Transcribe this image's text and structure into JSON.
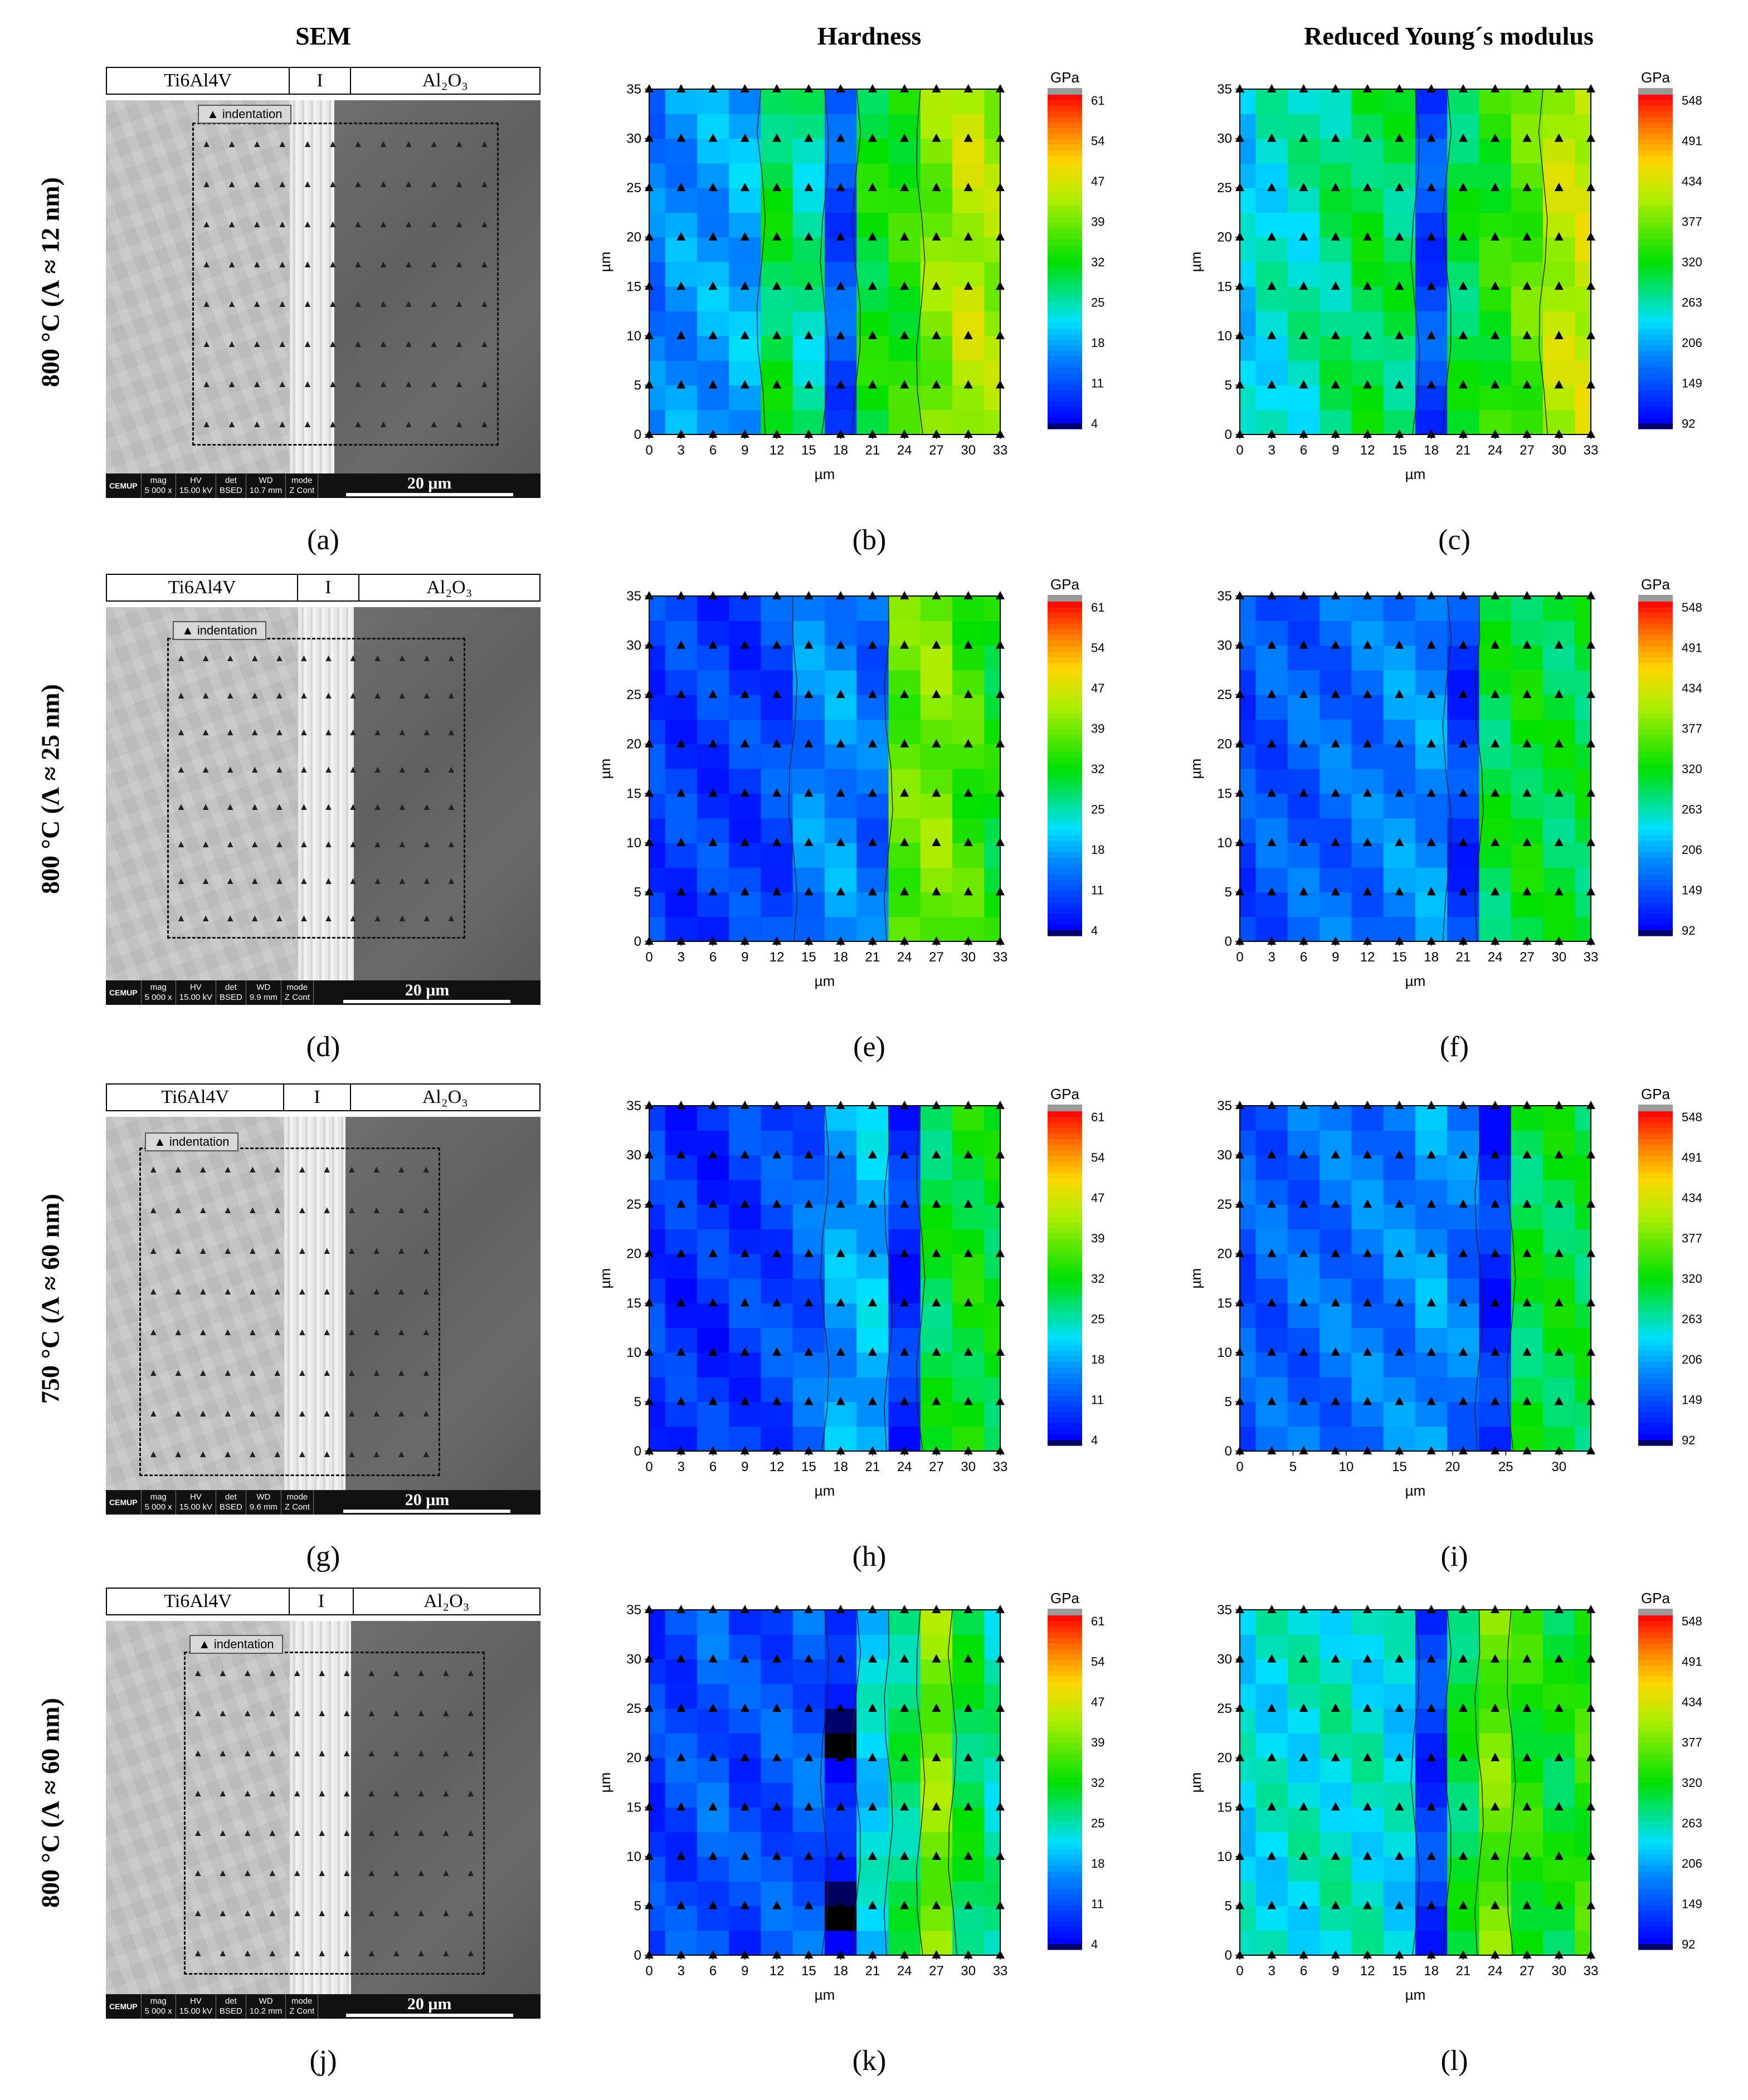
{
  "column_headers": [
    "SEM",
    "Hardness",
    "Reduced Young´s modulus"
  ],
  "rows": [
    {
      "label": "800 °C (Λ ≈ 12 nm)",
      "strip": [
        "Ti6Al4V",
        "I",
        "Al₂O₃"
      ],
      "legend": "▲ indentation",
      "sem_info": {
        "logo": "CEMUP",
        "mag": "5 000 x",
        "hv": "15.00 kV",
        "det": "BSED",
        "wd": "10.7 mm",
        "mode": "Z Cont",
        "scale": "20 μm"
      },
      "letters": [
        "(a)",
        "(b)",
        "(c)"
      ]
    },
    {
      "label": "800 °C (Λ ≈ 25 nm)",
      "strip": [
        "Ti6Al4V",
        "I",
        "Al₂O₃"
      ],
      "legend": "▲ indentation",
      "sem_info": {
        "logo": "CEMUP",
        "mag": "5 000 x",
        "hv": "15.00 kV",
        "det": "BSED",
        "wd": "9.9 mm",
        "mode": "Z Cont",
        "scale": "20 μm"
      },
      "letters": [
        "(d)",
        "(e)",
        "(f)"
      ]
    },
    {
      "label": "750 °C (Λ ≈ 60 nm)",
      "strip": [
        "Ti6Al4V",
        "I",
        "Al₂O₃"
      ],
      "legend": "▲ indentation",
      "sem_info": {
        "logo": "CEMUP",
        "mag": "5 000 x",
        "hv": "15.00 kV",
        "det": "BSED",
        "wd": "9.6 mm",
        "mode": "Z Cont",
        "scale": "20 μm"
      },
      "letters": [
        "(g)",
        "(h)",
        "(i)"
      ]
    },
    {
      "label": "800 °C (Λ ≈ 60 nm)",
      "strip": [
        "Ti6Al4V",
        "I",
        "Al₂O₃"
      ],
      "legend": "▲ indentation",
      "sem_info": {
        "logo": "CEMUP",
        "mag": "5 000 x",
        "hv": "15.00 kV",
        "det": "BSED",
        "wd": "10.2 mm",
        "mode": "Z Cont",
        "scale": "20 μm"
      },
      "letters": [
        "(j)",
        "(k)",
        "(l)"
      ]
    }
  ],
  "sem_info_labels": {
    "mag": "mag",
    "hv": "HV",
    "det": "det",
    "wd": "WD",
    "mode": "mode"
  },
  "chart_data": [
    {
      "type": "heatmap",
      "panel": "b",
      "title": "Hardness",
      "xlabel": "µm",
      "ylabel": "µm",
      "xticks": [
        "0",
        "3",
        "6",
        "9",
        "12",
        "15",
        "18",
        "21",
        "24",
        "27",
        "30",
        "33"
      ],
      "yticks": [
        "0",
        "5",
        "10",
        "15",
        "20",
        "25",
        "30",
        "35"
      ],
      "xlim": [
        0,
        33
      ],
      "ylim": [
        0,
        35
      ],
      "colorbar": {
        "unit": "GPa",
        "ticks": [
          "61",
          "54",
          "47",
          "39",
          "32",
          "25",
          "18",
          "11",
          "4"
        ],
        "min": 4,
        "max": 61
      },
      "columns_x": [
        0,
        3,
        6,
        9,
        12,
        15,
        18,
        21,
        24,
        27,
        30,
        33
      ],
      "values_approx_by_column": [
        15,
        17,
        18,
        19,
        30,
        26,
        12,
        32,
        34,
        40,
        44,
        42
      ]
    },
    {
      "type": "heatmap",
      "panel": "c",
      "title": "Reduced Young´s modulus",
      "xlabel": "µm",
      "ylabel": "µm",
      "xticks": [
        "0",
        "3",
        "6",
        "9",
        "12",
        "15",
        "18",
        "21",
        "24",
        "27",
        "30",
        "33"
      ],
      "yticks": [
        "0",
        "5",
        "10",
        "15",
        "20",
        "25",
        "30",
        "35"
      ],
      "xlim": [
        0,
        33
      ],
      "ylim": [
        0,
        35
      ],
      "colorbar": {
        "unit": "GPa",
        "ticks": [
          "548",
          "491",
          "434",
          "377",
          "320",
          "263",
          "206",
          "149",
          "92"
        ],
        "min": 92,
        "max": 548
      },
      "columns_x": [
        0,
        3,
        6,
        9,
        12,
        15,
        18,
        21,
        24,
        27,
        30,
        33
      ],
      "values_approx_by_column": [
        230,
        250,
        260,
        280,
        300,
        290,
        150,
        300,
        330,
        360,
        410,
        420
      ]
    },
    {
      "type": "heatmap",
      "panel": "e",
      "title": "Hardness",
      "xlabel": "µm",
      "ylabel": "µm",
      "xticks": [
        "0",
        "3",
        "6",
        "9",
        "12",
        "15",
        "18",
        "21",
        "24",
        "27",
        "30",
        "33"
      ],
      "yticks": [
        "0",
        "5",
        "10",
        "15",
        "20",
        "25",
        "30",
        "35"
      ],
      "xlim": [
        0,
        33
      ],
      "ylim": [
        0,
        35
      ],
      "colorbar": {
        "unit": "GPa",
        "ticks": [
          "61",
          "54",
          "47",
          "39",
          "32",
          "25",
          "18",
          "11",
          "4"
        ],
        "min": 4,
        "max": 61
      },
      "columns_x": [
        0,
        3,
        6,
        9,
        12,
        15,
        18,
        21,
        24,
        27,
        30,
        33
      ],
      "values_approx_by_column": [
        10,
        10,
        10,
        10,
        11,
        16,
        17,
        14,
        38,
        40,
        36,
        32
      ]
    },
    {
      "type": "heatmap",
      "panel": "f",
      "title": "Reduced Young´s modulus",
      "xlabel": "µm",
      "ylabel": "µm",
      "xticks": [
        "0",
        "3",
        "6",
        "9",
        "12",
        "15",
        "18",
        "21",
        "24",
        "27",
        "30",
        "33"
      ],
      "yticks": [
        "0",
        "5",
        "10",
        "15",
        "20",
        "25",
        "30",
        "35"
      ],
      "xlim": [
        0,
        33
      ],
      "ylim": [
        0,
        35
      ],
      "colorbar": {
        "unit": "GPa",
        "ticks": [
          "548",
          "491",
          "434",
          "377",
          "320",
          "263",
          "206",
          "149",
          "92"
        ],
        "min": 92,
        "max": 548
      },
      "columns_x": [
        0,
        3,
        6,
        9,
        12,
        15,
        18,
        21,
        24,
        27,
        30,
        33
      ],
      "values_approx_by_column": [
        150,
        160,
        165,
        170,
        175,
        190,
        195,
        140,
        300,
        310,
        300,
        300
      ]
    },
    {
      "type": "heatmap",
      "panel": "h",
      "title": "Hardness",
      "xlabel": "µm",
      "ylabel": "µm",
      "xticks": [
        "0",
        "3",
        "6",
        "9",
        "12",
        "15",
        "18",
        "21",
        "24",
        "27",
        "30",
        "33"
      ],
      "yticks": [
        "0",
        "5",
        "10",
        "15",
        "20",
        "25",
        "30",
        "35"
      ],
      "xlim": [
        0,
        33
      ],
      "ylim": [
        0,
        35
      ],
      "colorbar": {
        "unit": "GPa",
        "ticks": [
          "61",
          "54",
          "47",
          "39",
          "32",
          "25",
          "18",
          "11",
          "4"
        ],
        "min": 4,
        "max": 61
      },
      "columns_x": [
        0,
        3,
        6,
        9,
        12,
        15,
        18,
        21,
        24,
        27,
        30,
        33
      ],
      "values_approx_by_column": [
        10,
        9,
        9,
        10,
        11,
        13,
        18,
        20,
        9,
        30,
        32,
        31
      ]
    },
    {
      "type": "heatmap",
      "panel": "i",
      "title": "Reduced Young´s modulus",
      "xlabel": "µm",
      "ylabel": "µm",
      "xticks": [
        "0",
        "5",
        "10",
        "15",
        "20",
        "25",
        "30"
      ],
      "yticks": [
        "0",
        "5",
        "10",
        "15",
        "20",
        "25",
        "30",
        "35"
      ],
      "xlim": [
        0,
        33
      ],
      "ylim": [
        0,
        35
      ],
      "colorbar": {
        "unit": "GPa",
        "ticks": [
          "548",
          "491",
          "434",
          "377",
          "320",
          "263",
          "206",
          "149",
          "92"
        ],
        "min": 92,
        "max": 548
      },
      "columns_x": [
        0,
        3,
        6,
        9,
        12,
        15,
        18,
        21,
        24,
        27,
        30,
        33
      ],
      "values_approx_by_column": [
        160,
        165,
        170,
        175,
        180,
        185,
        200,
        180,
        130,
        300,
        305,
        300
      ]
    },
    {
      "type": "heatmap",
      "panel": "k",
      "title": "Hardness",
      "xlabel": "µm",
      "ylabel": "µm",
      "xticks": [
        "0",
        "3",
        "6",
        "9",
        "12",
        "15",
        "18",
        "21",
        "24",
        "27",
        "30",
        "33"
      ],
      "yticks": [
        "0",
        "5",
        "10",
        "15",
        "20",
        "25",
        "30",
        "35"
      ],
      "xlim": [
        0,
        33
      ],
      "ylim": [
        0,
        35
      ],
      "colorbar": {
        "unit": "GPa",
        "ticks": [
          "61",
          "54",
          "47",
          "39",
          "32",
          "25",
          "18",
          "11",
          "4"
        ],
        "min": 4,
        "max": 61
      },
      "columns_x": [
        0,
        3,
        6,
        9,
        12,
        15,
        18,
        21,
        24,
        27,
        30,
        33
      ],
      "values_approx_by_column": [
        10,
        11,
        13,
        11,
        12,
        13,
        7,
        22,
        28,
        40,
        30,
        26
      ]
    },
    {
      "type": "heatmap",
      "panel": "l",
      "title": "Reduced Young´s modulus",
      "xlabel": "µm",
      "ylabel": "µm",
      "xticks": [
        "0",
        "3",
        "6",
        "9",
        "12",
        "15",
        "18",
        "21",
        "24",
        "27",
        "30",
        "33"
      ],
      "yticks": [
        "0",
        "5",
        "10",
        "15",
        "20",
        "25",
        "30",
        "35"
      ],
      "xlim": [
        0,
        33
      ],
      "ylim": [
        0,
        35
      ],
      "colorbar": {
        "unit": "GPa",
        "ticks": [
          "548",
          "491",
          "434",
          "377",
          "320",
          "263",
          "206",
          "149",
          "92"
        ],
        "min": 92,
        "max": 548
      },
      "columns_x": [
        0,
        3,
        6,
        9,
        12,
        15,
        18,
        21,
        24,
        27,
        30,
        33
      ],
      "values_approx_by_column": [
        240,
        245,
        250,
        255,
        250,
        240,
        140,
        300,
        370,
        330,
        310,
        340
      ]
    }
  ]
}
